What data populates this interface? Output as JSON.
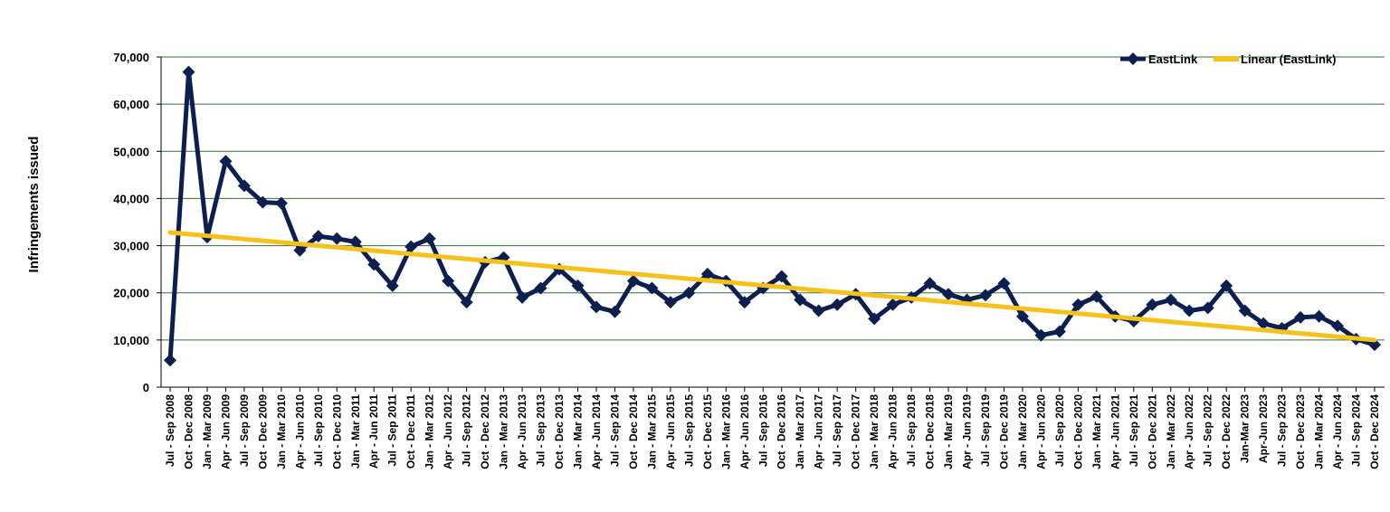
{
  "chart_data": {
    "type": "line",
    "title": "",
    "xlabel": "",
    "ylabel": "Infringements issued",
    "ylim": [
      0,
      70000
    ],
    "yticks": [
      "0",
      "10,000",
      "20,000",
      "30,000",
      "40,000",
      "50,000",
      "60,000",
      "70,000"
    ],
    "grid": "horizontal",
    "legend_position": "top-right",
    "categories": [
      "Jul - Sep 2008",
      "Oct - Dec 2008",
      "Jan - Mar 2009",
      "Apr - Jun 2009",
      "Jul - Sep 2009",
      "Oct - Dec 2009",
      "Jan - Mar 2010",
      "Apr - Jun 2010",
      "Jul - Sep 2010",
      "Oct - Dec 2010",
      "Jan - Mar 2011",
      "Apr - Jun 2011",
      "Jul - Sep 2011",
      "Oct - Dec 2011",
      "Jan - Mar 2012",
      "Apr - Jun 2012",
      "Jul - Sep 2012",
      "Oct - Dec 2012",
      "Jan - Mar 2013",
      "Apr - Jun 2013",
      "Jul - Sep 2013",
      "Oct - Dec 2013",
      "Jan - Mar 2014",
      "Apr - Jun 2014",
      "Jul - Sep 2014",
      "Oct - Dec 2014",
      "Jan - Mar 2015",
      "Apr - Jun 2015",
      "Jul - Sep 2015",
      "Oct - Dec 2015",
      "Jan - Mar 2016",
      "Apr - Jun 2016",
      "Jul - Sep 2016",
      "Oct - Dec 2016",
      "Jan - Mar 2017",
      "Apr - Jun 2017",
      "Jul - Sep 2017",
      "Oct - Dec 2017",
      "Jan - Mar 2018",
      "Apr - Jun 2018",
      "Jul - Sep 2018",
      "Oct - Dec 2018",
      "Jan - Mar 2019",
      "Apr - Jun 2019",
      "Jul - Sep 2019",
      "Oct - Dec 2019",
      "Jan - Mar 2020",
      "Apr - Jun 2020",
      "Jul - Sep 2020",
      "Oct - Dec 2020",
      "Jan - Mar 2021",
      "Apr - Jun 2021",
      "Jul - Sep 2021",
      "Oct - Dec 2021",
      "Jan - Mar 2022",
      "Apr - Jun 2022",
      "Jul - Sep 2022",
      "Oct - Dec 2022",
      "Jan-Mar 2023",
      "Apr-Jun 2023",
      "Jul - Sep 2023",
      "Oct - Dec 2023",
      "Jan - Mar 2024",
      "Apr - Jun 2024",
      "Jul - Sep 2024",
      "Oct - Dec 2024"
    ],
    "series": [
      {
        "name": "EastLink",
        "color": "#0d1f4f",
        "marker": "diamond",
        "values": [
          5700,
          66800,
          31800,
          47900,
          42700,
          39200,
          39000,
          29000,
          32000,
          31500,
          30800,
          26000,
          21500,
          29800,
          31500,
          22500,
          18000,
          26500,
          27500,
          19000,
          21000,
          25000,
          21500,
          17000,
          16000,
          22500,
          21000,
          18000,
          20000,
          24000,
          22500,
          18000,
          21000,
          23500,
          18500,
          16200,
          17500,
          19700,
          14500,
          17500,
          19000,
          22000,
          19700,
          18500,
          19500,
          22000,
          15000,
          11000,
          11800,
          17500,
          19200,
          15000,
          14000,
          17500,
          18500,
          16200,
          16800,
          21500,
          16200,
          13500,
          12500,
          14800,
          15000,
          13000,
          10200,
          9000
        ]
      },
      {
        "name": "Linear (EastLink)",
        "color": "#f5c21b",
        "type": "trendline",
        "values_start_end": [
          32800,
          10000
        ]
      }
    ]
  }
}
